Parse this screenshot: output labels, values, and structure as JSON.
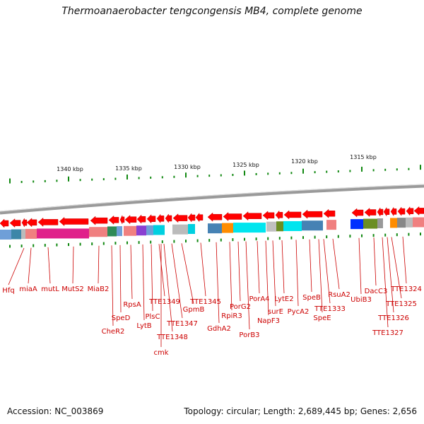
{
  "title": "Thermoanaerobacter tengcongensis MB4, complete genome",
  "footer": {
    "accession": "Accession: NC_003869",
    "summary": "Topology: circular; Length: 2,689,445 bp; Genes: 2,656"
  },
  "ruler": {
    "labels": [
      "1340 kbp",
      "1335 kbp",
      "1330 kbp",
      "1325 kbp",
      "1320 kbp",
      "1315 kbp"
    ]
  },
  "colors": {
    "gene_arrow": "#ff0000",
    "label": "#cc0000",
    "tick": "#118811",
    "backbone": "#888888"
  },
  "gene_labels": [
    "Hfq",
    "miaA",
    "mutL",
    "MutS2",
    "MiaB2",
    "CheR2",
    "SpeD",
    "RpsA",
    "LytB",
    "PlsC",
    "TTE1349",
    "cmk",
    "TTE1348",
    "TTE1347",
    "GpmB",
    "TTE1345",
    "GdhA2",
    "RpiR3",
    "PorG2",
    "PorB3",
    "PorA4",
    "NapF3",
    "surE",
    "LytE2",
    "PycA2",
    "SpeB",
    "SpeE",
    "TTE1333",
    "RsuA2",
    "UbiB3",
    "DacC3",
    "TTE1327",
    "TTE1326",
    "TTE1325",
    "TTE1324"
  ]
}
